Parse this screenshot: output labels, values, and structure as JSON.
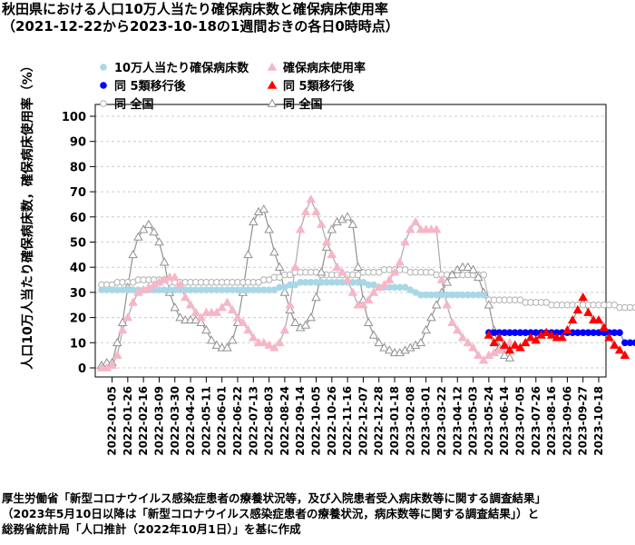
{
  "header": {
    "title": "秋田県における人口10万人当たり確保病床数と確保病床使用率",
    "subtitle": "（2021-12-22から2023-10-18の1週間おきの各日0時時点）"
  },
  "footer": {
    "line1": "厚生労働省「新型コロナウイルス感染症患者の療養状況等，及び入院患者受入病床数等に関する調査結果」",
    "line2": "（2023年5月10日以降は「新型コロナウイルス感染症患者の療養状況，病床数等に関する調査結果」）と",
    "line3": "総務省統計局「人口推計（2022年10月1日）」を基に作成"
  },
  "colors": {
    "beds": "#a8d8e6",
    "beds_post": "#0000ff",
    "beds_national": "#b0b0b0",
    "usage": "#f7b6c6",
    "usage_post": "#ff0000",
    "usage_national": "#909090",
    "grid": "#cccccc"
  },
  "chart_data": {
    "type": "scatter",
    "start_date": "2021-12-22",
    "end_date": "2023-10-18",
    "ylabel": "人口10万人当たり確保病床数，確保病床使用率（%）",
    "ylim": [
      0,
      100
    ],
    "yticks": [
      0,
      10,
      20,
      30,
      40,
      50,
      60,
      70,
      80,
      90,
      100
    ],
    "xticks": [
      "2022-01-05",
      "2022-01-26",
      "2022-02-16",
      "2022-03-09",
      "2022-03-30",
      "2022-04-20",
      "2022-05-11",
      "2022-06-01",
      "2022-06-22",
      "2022-07-13",
      "2022-08-03",
      "2022-08-24",
      "2022-09-14",
      "2022-10-05",
      "2022-10-26",
      "2022-11-16",
      "2022-12-07",
      "2022-12-28",
      "2023-01-18",
      "2023-02-08",
      "2023-03-01",
      "2023-03-22",
      "2023-04-12",
      "2023-05-03",
      "2023-05-24",
      "2023-06-14",
      "2023-07-05",
      "2023-07-26",
      "2023-08-16",
      "2023-09-06",
      "2023-09-27",
      "2023-10-18"
    ],
    "grid": true,
    "legend": {
      "position": "top-left",
      "items": [
        {
          "label": "10万人当たり確保病床数",
          "series": "beds"
        },
        {
          "label": "確保病床使用率",
          "series": "usage"
        },
        {
          "label": "同 5類移行後",
          "series": "beds_post"
        },
        {
          "label": "同 5類移行後",
          "series": "usage_post"
        },
        {
          "label": "同 全国",
          "series": "beds_national"
        },
        {
          "label": "同 全国",
          "series": "usage_national"
        }
      ]
    },
    "series": {
      "beds": [
        31,
        31,
        31,
        31,
        31,
        31,
        31,
        31,
        31,
        31,
        31,
        31,
        31,
        31,
        31,
        31,
        31,
        31,
        31,
        31,
        31,
        31,
        31,
        31,
        31,
        31,
        31,
        31,
        31,
        31,
        31,
        31,
        31,
        31,
        32,
        32,
        33,
        33,
        34,
        34,
        34,
        34,
        34,
        34,
        34,
        34,
        34,
        34,
        34,
        34,
        34,
        33,
        33,
        32,
        32,
        32,
        32,
        32,
        32,
        31,
        30,
        29,
        29,
        29,
        29,
        29,
        29,
        29,
        29,
        29,
        29,
        29,
        29,
        29
      ],
      "beds_post": [
        14,
        14,
        14,
        14,
        14,
        14,
        14,
        14,
        14,
        14,
        14,
        14,
        14,
        14,
        14,
        14,
        14,
        14,
        14,
        14,
        14,
        14,
        14,
        14,
        14,
        14,
        10,
        10,
        10
      ],
      "beds_national": [
        33,
        33,
        33,
        34,
        34,
        34,
        34,
        35,
        35,
        35,
        35,
        35,
        35,
        34,
        34,
        34,
        34,
        34,
        34,
        34,
        34,
        34,
        34,
        34,
        34,
        34,
        34,
        34,
        34,
        34,
        34,
        35,
        35,
        36,
        36,
        37,
        37,
        38,
        38,
        38,
        38,
        38,
        37,
        37,
        37,
        37,
        37,
        37,
        37,
        37,
        38,
        38,
        38,
        38,
        39,
        39,
        39,
        39,
        39,
        38,
        38,
        38,
        38,
        38,
        37,
        37,
        37,
        37,
        37,
        37,
        37,
        37,
        37,
        37,
        27,
        27,
        27,
        27,
        27,
        27,
        27,
        26,
        26,
        26,
        26,
        26,
        25,
        25,
        25,
        25,
        25,
        25,
        25,
        25,
        25,
        25,
        25,
        25,
        25,
        24,
        24,
        24,
        24
      ],
      "usage": [
        0,
        0,
        1,
        5,
        15,
        20,
        26,
        30,
        31,
        32,
        33,
        34,
        35,
        36,
        36,
        33,
        28,
        25,
        22,
        20,
        22,
        22,
        22,
        24,
        26,
        23,
        20,
        18,
        15,
        12,
        10,
        10,
        9,
        8,
        10,
        15,
        25,
        40,
        55,
        62,
        67,
        62,
        57,
        50,
        45,
        40,
        38,
        35,
        30,
        25,
        25,
        27,
        30,
        32,
        33,
        35,
        38,
        42,
        50,
        55,
        58,
        55,
        55,
        55,
        55,
        35,
        25,
        18,
        15,
        12,
        10,
        8,
        5,
        3,
        5,
        6,
        7,
        8,
        10
      ],
      "usage_post": [
        13,
        10,
        12,
        9,
        7,
        9,
        8,
        10,
        12,
        11,
        13,
        14,
        13,
        12,
        12,
        15,
        19,
        23,
        28,
        22,
        19,
        19,
        16,
        12,
        9,
        7,
        5
      ],
      "usage_national": [
        1,
        2,
        2,
        10,
        18,
        32,
        45,
        52,
        55,
        57,
        54,
        50,
        42,
        30,
        24,
        20,
        19,
        19,
        19,
        18,
        15,
        11,
        9,
        8,
        8,
        11,
        18,
        30,
        45,
        58,
        62,
        63,
        55,
        46,
        40,
        30,
        23,
        18,
        16,
        17,
        20,
        28,
        38,
        48,
        55,
        58,
        59,
        60,
        57,
        40,
        27,
        18,
        13,
        10,
        8,
        7,
        6,
        6,
        7,
        8,
        9,
        10,
        15,
        20,
        25,
        30,
        34,
        37,
        39,
        40,
        40,
        39,
        36,
        30,
        25,
        15,
        8,
        5,
        4
      ]
    }
  }
}
